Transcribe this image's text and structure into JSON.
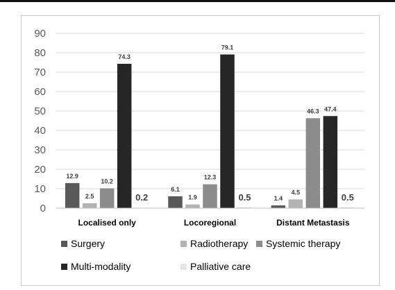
{
  "chart_data": {
    "type": "bar",
    "categories": [
      "Localised only",
      "Locoregional",
      "Distant Metastasis"
    ],
    "series": [
      {
        "name": "Surgery",
        "values": [
          12.9,
          6.1,
          1.4
        ],
        "color": "#595959"
      },
      {
        "name": "Radiotherapy",
        "values": [
          2.5,
          1.9,
          4.5
        ],
        "color": "#b3b3b3"
      },
      {
        "name": "Systemic therapy",
        "values": [
          10.2,
          12.3,
          46.3
        ],
        "color": "#8c8c8c"
      },
      {
        "name": "Multi-modality",
        "values": [
          74.3,
          79.1,
          47.4
        ],
        "color": "#262626"
      },
      {
        "name": "Palliative care",
        "values": [
          0.2,
          0.5,
          0.5
        ],
        "color": "#e6e6e6"
      }
    ],
    "data_labels": [
      [
        "12.9",
        "2.5",
        "10.2",
        "74.3",
        "0.2"
      ],
      [
        "6.1",
        "1.9",
        "12.3",
        "79.1",
        "0.5"
      ],
      [
        "1.4",
        "4.5",
        "46.3",
        "47.4",
        "0.5"
      ]
    ],
    "yticks": [
      "0",
      "10",
      "20",
      "30",
      "40",
      "50",
      "60",
      "70",
      "80",
      "90"
    ],
    "ylim": [
      0,
      90
    ],
    "grid": true,
    "legend_position": "bottom",
    "title": "",
    "xlabel": "",
    "ylabel": ""
  }
}
